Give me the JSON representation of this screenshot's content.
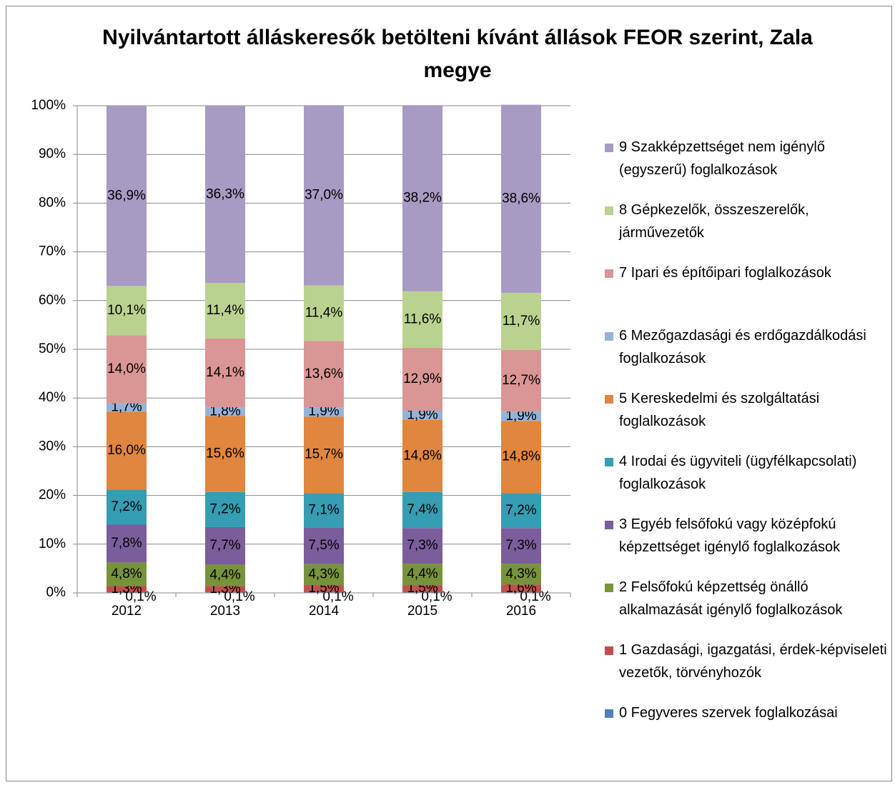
{
  "chart_data": {
    "type": "stacked_bar",
    "title": "Nyilvántartott álláskeresők betölteni kívánt állások FEOR szerint, Zala megye",
    "categories": [
      "2012",
      "2013",
      "2014",
      "2015",
      "2016"
    ],
    "ylim": [
      0,
      100
    ],
    "yticks": [
      {
        "value": 0,
        "label": "0%"
      },
      {
        "value": 10,
        "label": "10%"
      },
      {
        "value": 20,
        "label": "20%"
      },
      {
        "value": 30,
        "label": "30%"
      },
      {
        "value": 40,
        "label": "40%"
      },
      {
        "value": 50,
        "label": "50%"
      },
      {
        "value": 60,
        "label": "60%"
      },
      {
        "value": 70,
        "label": "70%"
      },
      {
        "value": 80,
        "label": "80%"
      },
      {
        "value": 90,
        "label": "90%"
      },
      {
        "value": 100,
        "label": "100%"
      }
    ],
    "grid": true,
    "legend": "right",
    "series": [
      {
        "name": "0 Fegyveres szervek foglalkozásai",
        "color": "#4f81bd",
        "values": [
          0.1,
          0.1,
          0.1,
          0.1,
          0.1
        ],
        "value_labels": [
          "0,1%",
          "0,1%",
          "0,1%",
          "0,1%",
          "0,1%"
        ]
      },
      {
        "name": "1 Gazdasági, igazgatási, érdek-képviseleti vezetők, törvényhozók",
        "color": "#c0504d",
        "values": [
          1.3,
          1.3,
          1.5,
          1.5,
          1.6
        ],
        "value_labels": [
          "1,3%",
          "1,3%",
          "1,5%",
          "1,5%",
          "1,6%"
        ]
      },
      {
        "name": "2 Felsőfokú képzettség önálló alkalmazását igénylő foglalkozások",
        "color": "#77933c",
        "values": [
          4.8,
          4.4,
          4.3,
          4.4,
          4.3
        ],
        "value_labels": [
          "4,8%",
          "4,4%",
          "4,3%",
          "4,4%",
          "4,3%"
        ]
      },
      {
        "name": "3 Egyéb felsőfokú vagy középfokú képzettséget igénylő foglalkozások",
        "color": "#7b5d9b",
        "values": [
          7.8,
          7.7,
          7.5,
          7.3,
          7.3
        ],
        "value_labels": [
          "7,8%",
          "7,7%",
          "7,5%",
          "7,3%",
          "7,3%"
        ]
      },
      {
        "name": "4 Irodai és ügyviteli (ügyfélkapcsolati) foglalkozások",
        "color": "#359db4",
        "values": [
          7.2,
          7.2,
          7.1,
          7.4,
          7.2
        ],
        "value_labels": [
          "7,2%",
          "7,2%",
          "7,1%",
          "7,4%",
          "7,2%"
        ]
      },
      {
        "name": "5 Kereskedelmi és szolgáltatási foglalkozások",
        "color": "#e0863e",
        "values": [
          16.0,
          15.6,
          15.7,
          14.8,
          14.8
        ],
        "value_labels": [
          "16,0%",
          "15,6%",
          "15,7%",
          "14,8%",
          "14,8%"
        ]
      },
      {
        "name": "6 Mezőgazdasági és erdőgazdálkodási foglalkozások",
        "color": "#95b3d7",
        "values": [
          1.7,
          1.8,
          1.9,
          1.9,
          1.9
        ],
        "value_labels": [
          "1,7%",
          "1,8%",
          "1,9%",
          "1,9%",
          "1,9%"
        ]
      },
      {
        "name": "7 Ipari és építőipari foglalkozások",
        "color": "#d99694",
        "values": [
          14.0,
          14.1,
          13.6,
          12.9,
          12.7
        ],
        "value_labels": [
          "14,0%",
          "14,1%",
          "13,6%",
          "12,9%",
          "12,7%"
        ]
      },
      {
        "name": "8 Gépkezelők, összeszerelők, járművezetők",
        "color": "#bad28f",
        "values": [
          10.1,
          11.4,
          11.4,
          11.6,
          11.7
        ],
        "value_labels": [
          "10,1%",
          "11,4%",
          "11,4%",
          "11,6%",
          "11,7%"
        ]
      },
      {
        "name": "9 Szakképzettséget nem igénylő (egyszerű) foglalkozások",
        "color": "#a79ac3",
        "values": [
          36.9,
          36.3,
          37.0,
          38.2,
          38.6
        ],
        "value_labels": [
          "36,9%",
          "36,3%",
          "37,0%",
          "38,2%",
          "38,6%"
        ]
      }
    ]
  }
}
